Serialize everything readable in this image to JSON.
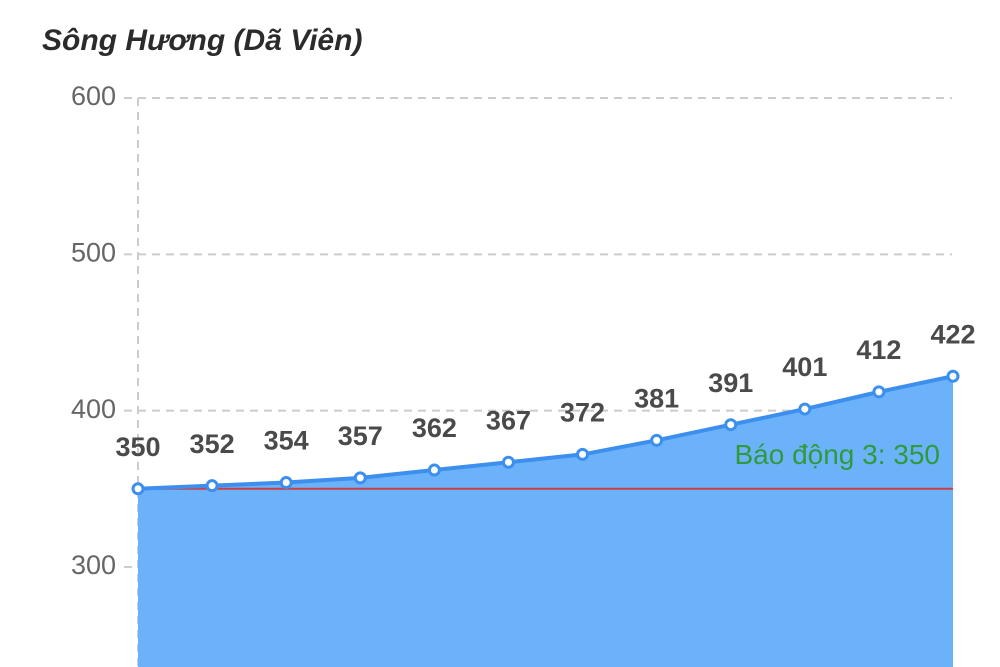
{
  "chart_data": {
    "type": "area",
    "title": "Sông Hương (Dã Viên)",
    "categories": [
      null,
      null,
      null,
      null,
      null,
      null,
      null,
      null,
      null,
      null,
      null,
      null
    ],
    "values": [
      350,
      352,
      354,
      357,
      362,
      367,
      372,
      381,
      391,
      401,
      412,
      422
    ],
    "color": "#3d8fee",
    "fill": "#6cb2fb",
    "ylim": [
      236,
      600
    ],
    "yticks": [
      300,
      400,
      500,
      600
    ],
    "grid": true,
    "reference_line": {
      "value": 350,
      "label": "Báo động 3: 350",
      "color": "#c9403f",
      "label_color": "#2f9a3b"
    }
  }
}
